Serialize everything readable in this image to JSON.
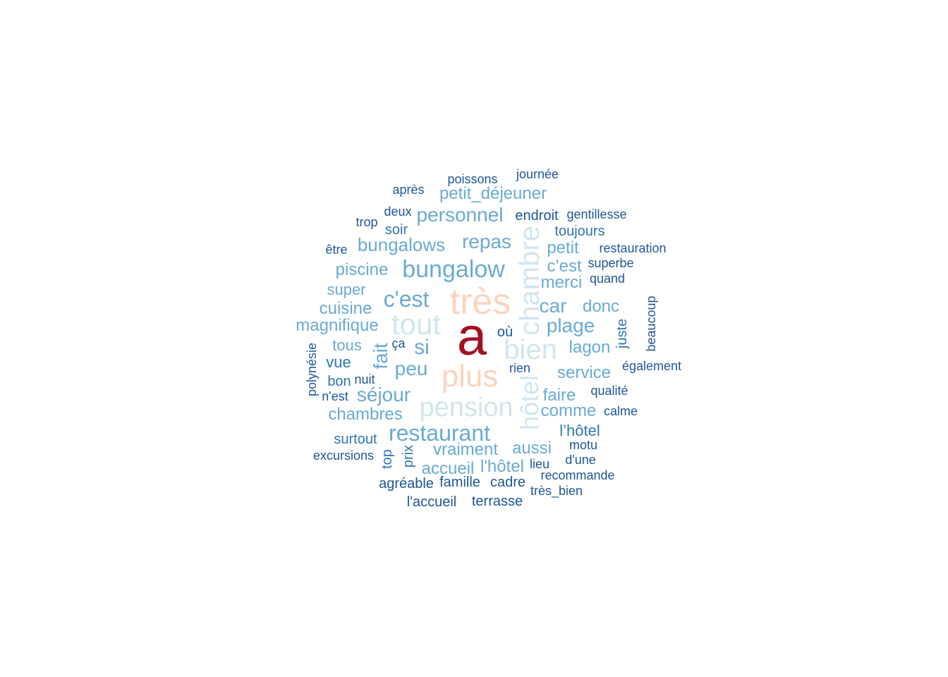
{
  "palette": {
    "red": "#a50f23",
    "peach": "#fcd4be",
    "pale_blue": "#d1e5f0",
    "light_blue": "#6aaad4",
    "mid_blue": "#2f74b4",
    "dark_blue": "#1f5598"
  },
  "words": [
    {
      "text": "a",
      "color": "#a50f23",
      "rank": 1
    },
    {
      "text": "très",
      "color": "#fcd4be",
      "rank": 2
    },
    {
      "text": "plus",
      "color": "#fcd4be",
      "rank": 3
    },
    {
      "text": "tout",
      "color": "#d1e5f0",
      "rank": 4
    },
    {
      "text": "chambre",
      "color": "#d1e5f0",
      "rank": 5
    },
    {
      "text": "bien",
      "color": "#d1e5f0",
      "rank": 6
    },
    {
      "text": "pension",
      "color": "#d1e5f0",
      "rank": 7
    },
    {
      "text": "hôtel",
      "color": "#d1e5f0",
      "rank": 8
    },
    {
      "text": "bungalow",
      "color": "#6aaad4",
      "rank": 9
    },
    {
      "text": "restaurant",
      "color": "#6aaad4",
      "rank": 10
    },
    {
      "text": "c'est",
      "color": "#6aaad4",
      "rank": 11
    },
    {
      "text": "personnel",
      "color": "#6aaad4",
      "rank": 12
    },
    {
      "text": "repas",
      "color": "#6aaad4",
      "rank": 13
    },
    {
      "text": "si",
      "color": "#6aaad4",
      "rank": 14
    },
    {
      "text": "fait",
      "color": "#6aaad4",
      "rank": 15
    },
    {
      "text": "séjour",
      "color": "#6aaad4",
      "rank": 16
    },
    {
      "text": "peu",
      "color": "#6aaad4",
      "rank": 17
    },
    {
      "text": "plage",
      "color": "#6aaad4",
      "rank": 18
    },
    {
      "text": "car",
      "color": "#6aaad4",
      "rank": 19
    },
    {
      "text": "bungalows",
      "color": "#6aaad4",
      "rank": 20
    },
    {
      "text": "petit_déjeuner",
      "color": "#6aaad4",
      "rank": 21
    },
    {
      "text": "magnifique",
      "color": "#6aaad4",
      "rank": 22
    },
    {
      "text": "piscine",
      "color": "#6aaad4",
      "rank": 23
    },
    {
      "text": "cuisine",
      "color": "#6aaad4",
      "rank": 24
    },
    {
      "text": "chambres",
      "color": "#6aaad4",
      "rank": 25
    },
    {
      "text": "vraiment",
      "color": "#6aaad4",
      "rank": 26
    },
    {
      "text": "accueil",
      "color": "#6aaad4",
      "rank": 27
    },
    {
      "text": "l'hôtel",
      "color": "#6aaad4",
      "rank": 28
    },
    {
      "text": "aussi",
      "color": "#6aaad4",
      "rank": 29
    },
    {
      "text": "faire",
      "color": "#6aaad4",
      "rank": 30
    },
    {
      "text": "comme",
      "color": "#6aaad4",
      "rank": 31
    },
    {
      "text": "service",
      "color": "#6aaad4",
      "rank": 32
    },
    {
      "text": "lagon",
      "color": "#6aaad4",
      "rank": 33
    },
    {
      "text": "donc",
      "color": "#6aaad4",
      "rank": 34
    },
    {
      "text": "merci",
      "color": "#6aaad4",
      "rank": 35
    },
    {
      "text": "c’est",
      "color": "#6aaad4",
      "rank": 36
    },
    {
      "text": "petit",
      "color": "#6aaad4",
      "rank": 37
    },
    {
      "text": "super",
      "color": "#6aaad4",
      "rank": 38
    },
    {
      "text": "tous",
      "color": "#6aaad4",
      "rank": 39
    },
    {
      "text": "l’hôtel",
      "color": "#2f74b4",
      "rank": 40
    },
    {
      "text": "toujours",
      "color": "#2f74b4",
      "rank": 41
    },
    {
      "text": "surtout",
      "color": "#2f74b4",
      "rank": 42
    },
    {
      "text": "vue",
      "color": "#2f74b4",
      "rank": 43
    },
    {
      "text": "soir",
      "color": "#2f74b4",
      "rank": 44
    },
    {
      "text": "juste",
      "color": "#2f74b4",
      "rank": 45
    },
    {
      "text": "bon",
      "color": "#2f74b4",
      "rank": 46
    },
    {
      "text": "top",
      "color": "#2f74b4",
      "rank": 47
    },
    {
      "text": "prix",
      "color": "#2f74b4",
      "rank": 48
    },
    {
      "text": "endroit",
      "color": "#1f5598",
      "rank": 49
    },
    {
      "text": "deux",
      "color": "#1f5598",
      "rank": 50
    },
    {
      "text": "où",
      "color": "#1f5598",
      "rank": 51
    },
    {
      "text": "ça",
      "color": "#1f5598",
      "rank": 52
    },
    {
      "text": "nuit",
      "color": "#1f5598",
      "rank": 53
    },
    {
      "text": "n'est",
      "color": "#1f5598",
      "rank": 54
    },
    {
      "text": "polynésie",
      "color": "#1f5598",
      "rank": 55
    },
    {
      "text": "rien",
      "color": "#1f5598",
      "rank": 56
    },
    {
      "text": "cadre",
      "color": "#1f5598",
      "rank": 57
    },
    {
      "text": "famille",
      "color": "#1f5598",
      "rank": 58
    },
    {
      "text": "agréable",
      "color": "#1f5598",
      "rank": 59
    },
    {
      "text": "l'accueil",
      "color": "#1f5598",
      "rank": 60
    },
    {
      "text": "terrasse",
      "color": "#1f5598",
      "rank": 61
    },
    {
      "text": "excursions",
      "color": "#1f5598",
      "rank": 62
    },
    {
      "text": "poissons",
      "color": "#1f5598",
      "rank": 63
    },
    {
      "text": "journée",
      "color": "#1f5598",
      "rank": 64
    },
    {
      "text": "après",
      "color": "#1f5598",
      "rank": 65
    },
    {
      "text": "trop",
      "color": "#1f5598",
      "rank": 66
    },
    {
      "text": "être",
      "color": "#1f5598",
      "rank": 67
    },
    {
      "text": "gentillesse",
      "color": "#1f5598",
      "rank": 68
    },
    {
      "text": "restauration",
      "color": "#1f5598",
      "rank": 69
    },
    {
      "text": "superbe",
      "color": "#1f5598",
      "rank": 70
    },
    {
      "text": "quand",
      "color": "#1f5598",
      "rank": 71
    },
    {
      "text": "beaucoup",
      "color": "#1f5598",
      "rank": 72
    },
    {
      "text": "également",
      "color": "#1f5598",
      "rank": 73
    },
    {
      "text": "qualité",
      "color": "#1f5598",
      "rank": 74
    },
    {
      "text": "calme",
      "color": "#1f5598",
      "rank": 75
    },
    {
      "text": "motu",
      "color": "#1f5598",
      "rank": 76
    },
    {
      "text": "d'une",
      "color": "#1f5598",
      "rank": 77
    },
    {
      "text": "lieu",
      "color": "#1f5598",
      "rank": 78
    },
    {
      "text": "recommande",
      "color": "#1f5598",
      "rank": 79
    },
    {
      "text": "très_bien",
      "color": "#1f5598",
      "rank": 80
    }
  ]
}
